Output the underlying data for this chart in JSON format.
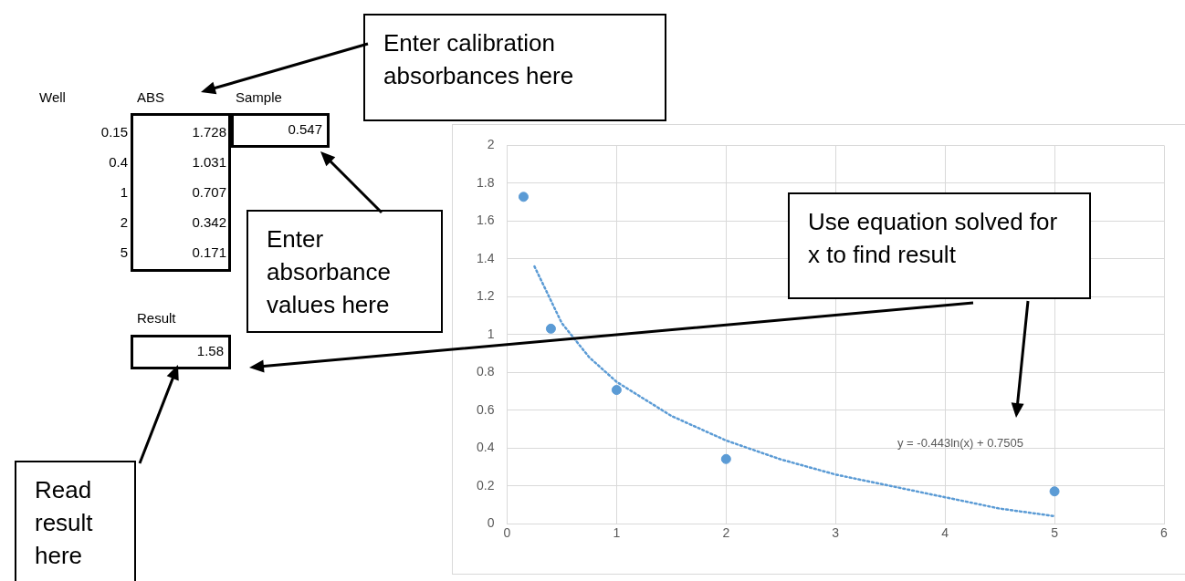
{
  "chart_data": {
    "type": "scatter",
    "xlim": [
      0,
      6
    ],
    "xticks": [
      0,
      1,
      2,
      3,
      4,
      5,
      6
    ],
    "ylim": [
      0,
      2
    ],
    "yticks": [
      0,
      0.2,
      0.4,
      0.6,
      0.8,
      1,
      1.2,
      1.4,
      1.6,
      1.8,
      2
    ],
    "grid": true,
    "series": [
      {
        "type": "scatter",
        "color": "#5b9bd5",
        "marker": "circle",
        "x": [
          0.15,
          0.4,
          1,
          2,
          5
        ],
        "values": [
          1.728,
          1.031,
          0.707,
          0.342,
          0.171
        ]
      },
      {
        "type": "line",
        "color": "#5b9bd5",
        "marker": "none",
        "line_style": "dotted",
        "x": [
          0.25,
          0.5,
          0.75,
          1,
          1.5,
          2,
          2.5,
          3,
          3.5,
          4,
          4.5,
          5
        ],
        "values": [
          1.36,
          1.06,
          0.88,
          0.75,
          0.57,
          0.44,
          0.34,
          0.26,
          0.2,
          0.14,
          0.08,
          0.04
        ]
      }
    ],
    "annotations": [
      "Well",
      "ABS",
      "Sample",
      "0.15",
      "0.4",
      "1",
      "2",
      "5",
      "1.728",
      "1.031",
      "0.707",
      "0.342",
      "0.171",
      "0.547",
      "Result",
      "1.58",
      "Enter calibration absorbances here",
      "Enter absorbance values here",
      "Use equation solved for x to find result",
      "Read result here",
      "y = -0.443ln(x) + 0.7505"
    ]
  }
}
